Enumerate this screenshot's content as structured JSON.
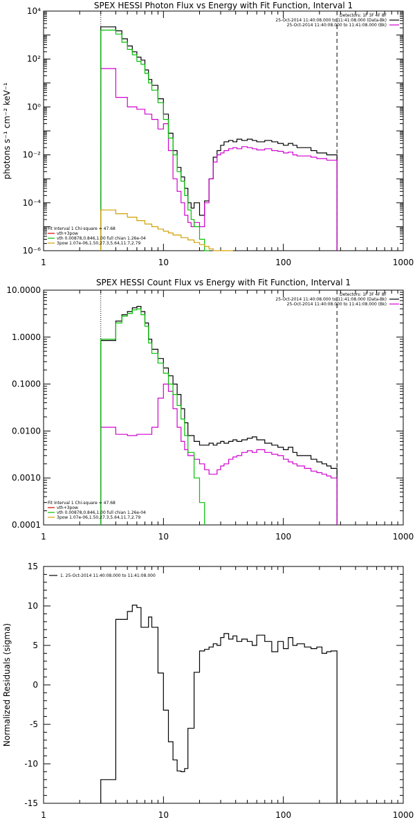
{
  "chart_data": [
    {
      "type": "line",
      "title": "SPEX HESSI Photon Flux vs Energy with Fit Function, Interval 1",
      "ylabel": "photons s⁻¹ cm⁻² keV⁻¹",
      "xscale": "log",
      "yscale": "log",
      "xlim": [
        1,
        1000
      ],
      "ylim": [
        1e-06,
        10000
      ],
      "x_ticks": [
        "1",
        "10",
        "100",
        "1000"
      ],
      "y_ticks": [
        "10⁴",
        "10²",
        "10⁰",
        "10⁻²",
        "10⁻⁴",
        "10⁻⁶"
      ],
      "vlines": [
        {
          "x": 3,
          "style": "dotted"
        },
        {
          "x": 280,
          "style": "dashed"
        }
      ],
      "legend_top": {
        "position": "top-right",
        "lines": [
          {
            "text": "Detectors: 1F 3F 4F 8F",
            "color": ""
          },
          {
            "text": "25-Oct-2014 11:40:08.000 to 11:41:08.000 (Data-Bk)",
            "color": "#000000"
          },
          {
            "text": "25-Oct-2014 11:40:08.000 to 11:41:08.000 (Bk)",
            "color": "#d000d0"
          }
        ]
      },
      "legend_bottom": {
        "position": "bottom-left",
        "lines": [
          {
            "text": "Fit Interval  1    Chi-square = 47.68",
            "color": ""
          },
          {
            "text": "vth+3pow",
            "color": "#d00000"
          },
          {
            "text": "vth 0.00878,0.846,1.00  full chian 1.26e-04",
            "color": "#00c000"
          },
          {
            "text": "3pow 1.07e-06,1.50,27.3,5.64,11.7,2.79",
            "color": "#d0a000"
          }
        ]
      },
      "series": [
        {
          "name": "25-Oct-2014 11:40:08.000 to 11:41:08.000 (Data-Bk)",
          "color": "#000000",
          "x": [
            3.0,
            3.5,
            4.0,
            4.5,
            5.0,
            5.5,
            6.0,
            6.5,
            7.0,
            7.5,
            8.0,
            9.0,
            10.0,
            11.0,
            12.0,
            13.0,
            14.0,
            15.0,
            16.0,
            17.0,
            18.0,
            20.0,
            22.0,
            24.0,
            26.0,
            28.0,
            30.0,
            32.0,
            35.0,
            38.0,
            41.0,
            45.0,
            50.0,
            55.0,
            60.0,
            70.0,
            80.0,
            90.0,
            100.0,
            110.0,
            120.0,
            130.0,
            150.0,
            170.0,
            190.0,
            210.0,
            230.0,
            250.0,
            280.0
          ],
          "y": [
            2200,
            2200,
            1500,
            700,
            350,
            200,
            120,
            90,
            35,
            14,
            8,
            2.2,
            0.5,
            0.08,
            0.015,
            0.003,
            0.0012,
            0.0004,
            0.0001,
            6e-05,
            0.0001,
            3e-05,
            0.00012,
            0.001,
            0.008,
            0.015,
            0.025,
            0.035,
            0.04,
            0.035,
            0.045,
            0.04,
            0.045,
            0.04,
            0.035,
            0.04,
            0.035,
            0.03,
            0.025,
            0.03,
            0.025,
            0.02,
            0.02,
            0.015,
            0.012,
            0.012,
            0.01,
            0.01,
            0.01
          ]
        },
        {
          "name": "25-Oct-2014 11:40:08.000 to 11:41:08.000 (Bk)",
          "color": "#d000d0",
          "x": [
            3.0,
            4.0,
            5.0,
            6.0,
            7.0,
            8.0,
            9.0,
            10.0,
            11.0,
            12.0,
            13.0,
            14.0,
            15.0,
            16.0,
            17.0,
            18.0,
            20.0,
            22.0,
            24.0,
            26.0,
            28.0,
            30.0,
            32.0,
            35.0,
            38.0,
            41.0,
            45.0,
            50.0,
            55.0,
            60.0,
            70.0,
            80.0,
            90.0,
            100.0,
            110.0,
            120.0,
            130.0,
            150.0,
            170.0,
            190.0,
            210.0,
            230.0,
            250.0,
            280.0
          ],
          "y": [
            40,
            2.5,
            1.0,
            0.8,
            0.5,
            0.3,
            0.12,
            0.2,
            0.015,
            0.001,
            0.0003,
            0.0001,
            3e-05,
            1.5e-05,
            1e-05,
            1.5e-05,
            1e-05,
            0.0001,
            0.001,
            0.005,
            0.01,
            0.012,
            0.015,
            0.018,
            0.02,
            0.018,
            0.022,
            0.02,
            0.018,
            0.016,
            0.018,
            0.015,
            0.014,
            0.012,
            0.013,
            0.01,
            0.009,
            0.009,
            0.008,
            0.007,
            0.007,
            0.006,
            0.006,
            0.006
          ]
        },
        {
          "name": "vth 0.00878,0.846,1.00  full chian 1.26e-04",
          "color": "#00c000",
          "x": [
            3.0,
            3.5,
            4.0,
            4.5,
            5.0,
            5.5,
            6.0,
            6.5,
            7.0,
            7.5,
            8.0,
            9.0,
            10.0,
            11.0,
            12.0,
            13.0,
            14.0,
            15.0,
            16.0,
            17.0,
            18.0,
            20.0,
            22.0,
            24.0
          ],
          "y": [
            1600,
            1600,
            1100,
            500,
            250,
            150,
            80,
            60,
            25,
            10,
            5,
            1.5,
            0.3,
            0.05,
            0.01,
            0.002,
            0.0008,
            0.0002,
            5e-05,
            2e-05,
            1e-05,
            3e-06,
            1e-06,
            1e-06
          ]
        },
        {
          "name": "3pow 1.07e-06,1.50,27.3,5.64,11.7,2.79",
          "color": "#d0a000",
          "x": [
            3.0,
            4.0,
            5.0,
            6.0,
            7.0,
            8.0,
            9.0,
            10.0,
            11.0,
            12.0,
            14.0,
            16.0,
            18.0,
            20.0,
            22.0,
            24.0,
            26.0,
            28.0,
            30.0,
            32.0,
            35.0,
            38.0
          ],
          "y": [
            5e-05,
            3.5e-05,
            2.5e-05,
            1.8e-05,
            1.3e-05,
            1e-05,
            8e-06,
            6.5e-06,
            5.5e-06,
            4.5e-06,
            3.5e-06,
            2.8e-06,
            2.2e-06,
            1.8e-06,
            1.5e-06,
            1.2e-06,
            1e-06,
            1e-06,
            1e-06,
            1e-06,
            1e-06,
            1e-06
          ]
        }
      ]
    },
    {
      "type": "line",
      "title": "SPEX HESSI Count Flux vs Energy with Fit Function, Interval 1",
      "ylabel": "",
      "xscale": "log",
      "yscale": "log",
      "xlim": [
        1,
        1000
      ],
      "ylim": [
        0.0001,
        10
      ],
      "x_ticks": [
        "1",
        "10",
        "100",
        "1000"
      ],
      "y_ticks": [
        "10.0000",
        "1.0000",
        "0.1000",
        "0.0100",
        "0.0010",
        "0.0001"
      ],
      "vlines": [
        {
          "x": 3,
          "style": "dotted"
        },
        {
          "x": 280,
          "style": "dashed"
        }
      ],
      "legend_top": {
        "position": "top-right",
        "lines": [
          {
            "text": "Detectors: 1F 3F 4F 8F",
            "color": ""
          },
          {
            "text": "25-Oct-2014 11:40:08.000 to 11:41:08.000 (Data-Bk)",
            "color": "#000000"
          },
          {
            "text": "25-Oct-2014 11:40:08.000 to 11:41:08.000 (Bk)",
            "color": "#d000d0"
          }
        ]
      },
      "legend_bottom": {
        "position": "bottom-left",
        "lines": [
          {
            "text": "Fit Interval  1    Chi-square = 47.68",
            "color": ""
          },
          {
            "text": "vth+3pow",
            "color": "#d00000"
          },
          {
            "text": "vth 0.00878,0.846,1.00  full chian 1.26e-04",
            "color": "#00c000"
          },
          {
            "text": "3pow 1.07e-06,1.50,27.3,5.64,11.7,2.79",
            "color": "#d0a000"
          }
        ]
      },
      "series": [
        {
          "name": "25-Oct-2014 11:40:08.000 to 11:41:08.000 (Data-Bk)",
          "color": "#000000",
          "x": [
            3.0,
            3.5,
            4.0,
            4.5,
            5.0,
            5.5,
            6.0,
            6.5,
            7.0,
            7.5,
            8.0,
            9.0,
            10.0,
            11.0,
            12.0,
            13.0,
            14.0,
            15.0,
            16.0,
            18.0,
            20.0,
            22.0,
            24.0,
            26.0,
            28.0,
            30.0,
            32.0,
            35.0,
            38.0,
            41.0,
            45.0,
            50.0,
            55.0,
            60.0,
            70.0,
            80.0,
            90.0,
            100.0,
            110.0,
            120.0,
            130.0,
            150.0,
            170.0,
            190.0,
            210.0,
            230.0,
            250.0,
            280.0
          ],
          "y": [
            0.85,
            0.85,
            2.2,
            3.0,
            3.5,
            4.2,
            4.5,
            3.5,
            2.0,
            0.9,
            0.55,
            0.35,
            0.22,
            0.15,
            0.1,
            0.06,
            0.03,
            0.015,
            0.008,
            0.006,
            0.005,
            0.005,
            0.0055,
            0.005,
            0.0055,
            0.006,
            0.0055,
            0.006,
            0.0065,
            0.006,
            0.0065,
            0.007,
            0.0075,
            0.0065,
            0.0055,
            0.005,
            0.0045,
            0.004,
            0.0045,
            0.0035,
            0.003,
            0.003,
            0.0025,
            0.0022,
            0.002,
            0.0018,
            0.0016,
            0.0016
          ]
        },
        {
          "name": "25-Oct-2014 11:40:08.000 to 11:41:08.000 (Bk)",
          "color": "#d000d0",
          "x": [
            3.0,
            4.0,
            5.0,
            6.0,
            7.0,
            8.0,
            9.0,
            10.0,
            11.0,
            12.0,
            13.0,
            14.0,
            15.0,
            16.0,
            18.0,
            20.0,
            22.0,
            24.0,
            26.0,
            28.0,
            30.0,
            32.0,
            35.0,
            38.0,
            41.0,
            45.0,
            50.0,
            55.0,
            60.0,
            70.0,
            80.0,
            90.0,
            100.0,
            110.0,
            120.0,
            130.0,
            150.0,
            170.0,
            190.0,
            210.0,
            230.0,
            250.0,
            280.0
          ],
          "y": [
            0.012,
            0.0085,
            0.008,
            0.0085,
            0.0085,
            0.012,
            0.05,
            0.1,
            0.07,
            0.03,
            0.012,
            0.006,
            0.004,
            0.003,
            0.0025,
            0.002,
            0.0015,
            0.0012,
            0.0012,
            0.0015,
            0.0018,
            0.002,
            0.0025,
            0.0028,
            0.003,
            0.0035,
            0.0038,
            0.0035,
            0.004,
            0.0035,
            0.0032,
            0.003,
            0.0025,
            0.0022,
            0.002,
            0.0018,
            0.0016,
            0.0014,
            0.0013,
            0.0012,
            0.0011,
            0.001,
            0.001
          ]
        },
        {
          "name": "vth 0.00878,0.846,1.00  full chian 1.26e-04",
          "color": "#00c000",
          "x": [
            3.0,
            3.5,
            4.0,
            4.5,
            5.0,
            5.5,
            6.0,
            6.5,
            7.0,
            7.5,
            8.0,
            9.0,
            10.0,
            11.0,
            12.0,
            13.0,
            14.0,
            15.0,
            16.0,
            18.0,
            20.0,
            22.0
          ],
          "y": [
            0.9,
            0.9,
            2.0,
            2.8,
            3.2,
            3.8,
            4.0,
            3.0,
            1.7,
            0.75,
            0.45,
            0.28,
            0.17,
            0.1,
            0.06,
            0.035,
            0.018,
            0.008,
            0.0035,
            0.001,
            0.0003,
            0.0001
          ]
        }
      ]
    },
    {
      "type": "line",
      "title": "",
      "ylabel": "Normalized Residuals (sigma)",
      "xscale": "log",
      "yscale": "linear",
      "xlim": [
        1,
        1000
      ],
      "ylim": [
        -15,
        15
      ],
      "x_ticks": [
        "1",
        "10",
        "100",
        "1000"
      ],
      "y_ticks": [
        "15",
        "10",
        "5",
        "0",
        "-5",
        "-10",
        "-15"
      ],
      "legend_top": {
        "position": "top-left",
        "lines": [
          {
            "text": "1. 25-Oct-2014 11:40:08.000 to 11:41:08.000",
            "color": "#000000"
          }
        ]
      },
      "series": [
        {
          "name": "1. 25-Oct-2014 11:40:08.000 to 11:41:08.000",
          "color": "#000000",
          "x": [
            3.0,
            4.0,
            4.5,
            5.0,
            5.5,
            6.0,
            6.5,
            7.0,
            7.5,
            8.0,
            9.0,
            10.0,
            11.0,
            12.0,
            13.0,
            14.0,
            15.0,
            16.0,
            18.0,
            20.0,
            22.0,
            24.0,
            26.0,
            28.0,
            30.0,
            32.0,
            35.0,
            38.0,
            41.0,
            45.0,
            50.0,
            55.0,
            60.0,
            70.0,
            80.0,
            90.0,
            100.0,
            110.0,
            120.0,
            130.0,
            150.0,
            170.0,
            190.0,
            210.0,
            230.0,
            250.0,
            280.0
          ],
          "y": [
            -12,
            8.3,
            8.3,
            9.3,
            10.1,
            9.8,
            7.3,
            7.3,
            8.6,
            7.3,
            1.5,
            -3.2,
            -7.2,
            -9.5,
            -10.9,
            -11.0,
            -10.6,
            -5.5,
            1.6,
            4.3,
            4.5,
            4.8,
            5.2,
            5.0,
            6.0,
            6.5,
            5.8,
            6.2,
            5.5,
            5.8,
            5.5,
            5.0,
            6.3,
            5.5,
            4.2,
            5.5,
            4.6,
            6.0,
            5.0,
            5.2,
            4.8,
            4.6,
            4.8,
            4.0,
            4.2,
            4.3,
            3.5
          ]
        }
      ]
    }
  ]
}
